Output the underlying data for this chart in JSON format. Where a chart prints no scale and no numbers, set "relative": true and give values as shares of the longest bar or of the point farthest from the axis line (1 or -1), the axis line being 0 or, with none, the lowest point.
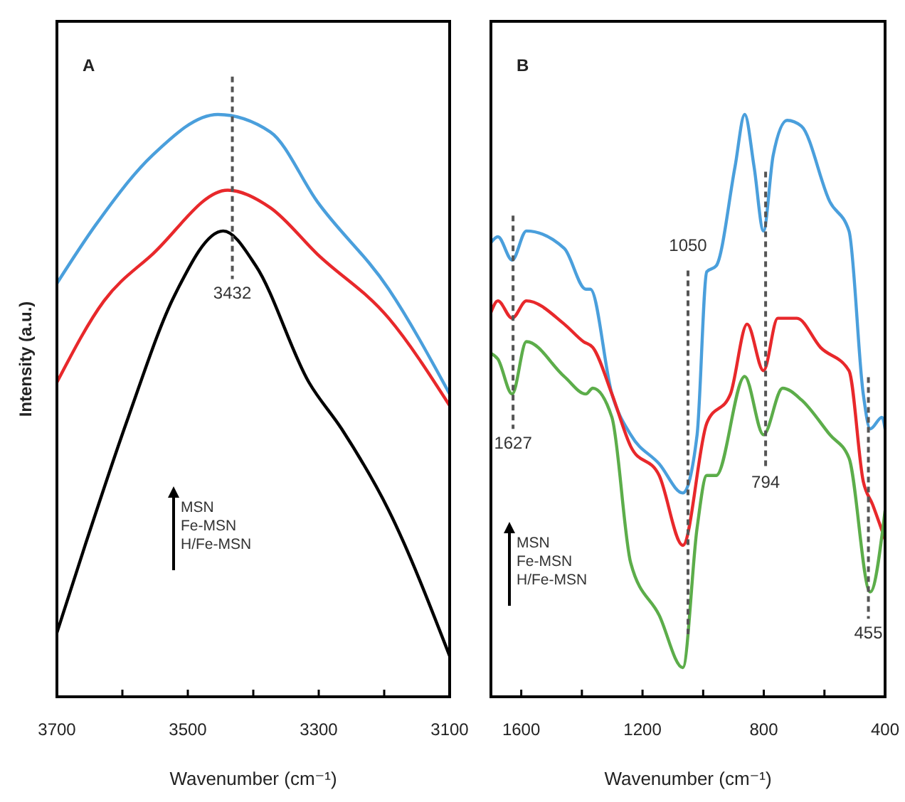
{
  "chart_data": [
    {
      "type": "line",
      "title": "A",
      "xlabel": "Wavenumber (cm⁻¹)",
      "ylabel": "Intensity (a.u.)",
      "relative": true,
      "xlim": [
        3700,
        3100
      ],
      "xticks": [
        3700,
        {
          "value": 3600,
          "label": null
        },
        3500,
        {
          "value": 3400,
          "label": null
        },
        3300,
        {
          "value": 3200,
          "label": null
        },
        3100
      ],
      "ref_lines": [
        {
          "axis": "x",
          "value": 3432,
          "label": "3432",
          "line_style": "dashed",
          "color": "#555555"
        }
      ],
      "annotations": [
        "MSN",
        "Fe-MSN",
        "H/Fe-MSN"
      ],
      "series": [
        {
          "color": "#4a9fdc",
          "x": [
            3700,
            3641,
            3554,
            3454,
            3374,
            3302,
            3193,
            3100
          ],
          "values": [
            0.71,
            0.81,
            0.93,
            1.0,
            0.97,
            0.85,
            0.7,
            0.52
          ]
        },
        {
          "color": "#e8282b",
          "x": [
            3700,
            3628,
            3554,
            3439,
            3374,
            3302,
            3193,
            3100
          ],
          "values": [
            0.54,
            0.68,
            0.76,
            0.87,
            0.84,
            0.76,
            0.65,
            0.5
          ]
        },
        {
          "color": "#000000",
          "x": [
            3700,
            3657,
            3591,
            3520,
            3446,
            3396,
            3315,
            3265,
            3193,
            3100
          ],
          "values": [
            0.11,
            0.26,
            0.48,
            0.69,
            0.8,
            0.74,
            0.54,
            0.46,
            0.32,
            0.07
          ]
        }
      ]
    },
    {
      "type": "line",
      "title": "B",
      "xlabel": "Wavenumber (cm⁻¹)",
      "relative": true,
      "xlim": [
        1700,
        400
      ],
      "xticks": [
        1600,
        {
          "value": 1400,
          "label": null
        },
        1200,
        {
          "value": 1000,
          "label": null
        },
        800,
        {
          "value": 600,
          "label": null
        },
        400
      ],
      "ref_lines": [
        {
          "axis": "x",
          "value": 1627,
          "label": "1627",
          "line_style": "dashed",
          "color": "#555555"
        },
        {
          "axis": "x",
          "value": 1050,
          "label": "1050",
          "line_style": "dashed",
          "color": "#555555"
        },
        {
          "axis": "x",
          "value": 794,
          "label": "794",
          "line_style": "dashed",
          "color": "#555555"
        },
        {
          "axis": "x",
          "value": 455,
          "label": "455",
          "line_style": "dashed",
          "color": "#555555"
        }
      ],
      "annotations": [
        "MSN",
        "Fe-MSN",
        "H/Fe-MSN"
      ],
      "series": [
        {
          "color": "#4a9fdc",
          "x": [
            1700,
            1677,
            1630,
            1583,
            1458,
            1387,
            1372,
            1301,
            1239,
            1145,
            1067,
            1020,
            988,
            957,
            895,
            863,
            832,
            801,
            769,
            723,
            676,
            582,
            519,
            472,
            449,
            410,
            400
          ],
          "values": [
            0.78,
            0.79,
            0.75,
            0.8,
            0.77,
            0.7,
            0.7,
            0.52,
            0.45,
            0.4,
            0.35,
            0.45,
            0.73,
            0.74,
            0.91,
            1.0,
            0.91,
            0.8,
            0.93,
            0.99,
            0.98,
            0.85,
            0.8,
            0.52,
            0.46,
            0.48,
            0.46
          ]
        },
        {
          "color": "#e8282b",
          "x": [
            1700,
            1677,
            1630,
            1583,
            1458,
            1395,
            1364,
            1301,
            1239,
            1145,
            1067,
            988,
            910,
            855,
            801,
            754,
            691,
            613,
            519,
            472,
            441,
            400
          ],
          "values": [
            0.66,
            0.68,
            0.65,
            0.68,
            0.64,
            0.61,
            0.6,
            0.52,
            0.43,
            0.38,
            0.26,
            0.47,
            0.52,
            0.64,
            0.56,
            0.65,
            0.65,
            0.6,
            0.56,
            0.37,
            0.33,
            0.27
          ]
        },
        {
          "color": "#5cad4a",
          "x": [
            1700,
            1677,
            1630,
            1583,
            1458,
            1387,
            1364,
            1301,
            1239,
            1145,
            1067,
            1020,
            988,
            957,
            863,
            801,
            738,
            676,
            582,
            519,
            449,
            400
          ],
          "values": [
            0.59,
            0.58,
            0.52,
            0.61,
            0.55,
            0.52,
            0.53,
            0.48,
            0.23,
            0.14,
            0.05,
            0.29,
            0.38,
            0.38,
            0.55,
            0.45,
            0.53,
            0.51,
            0.45,
            0.41,
            0.18,
            0.32
          ]
        }
      ]
    }
  ]
}
